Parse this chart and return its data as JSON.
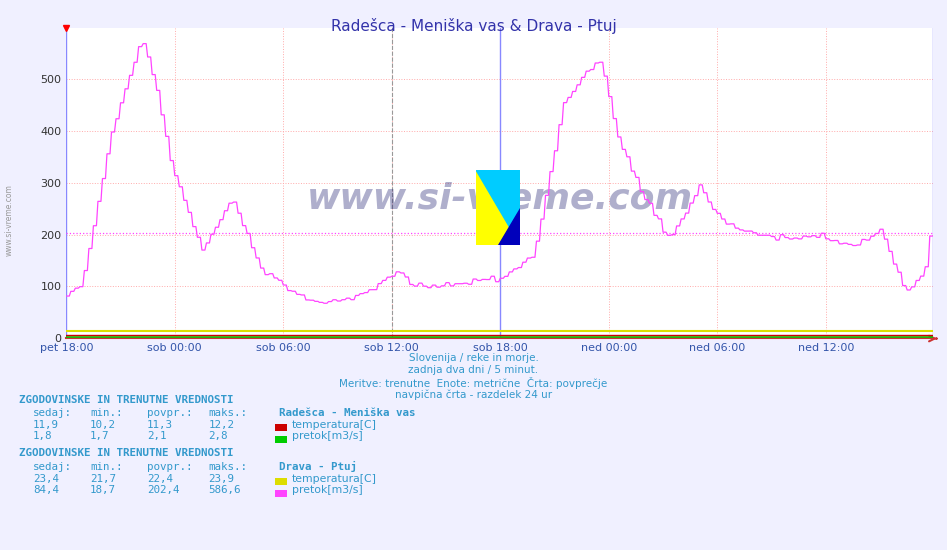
{
  "title": "Radešca - Meniška vas & Drava - Ptuj",
  "title_color": "#3333aa",
  "bg_color": "#f0f0ff",
  "plot_bg_color": "#ffffff",
  "grid_color_major": "#ffaaaa",
  "xlabel_ticks": [
    "pet 18:00",
    "sob 00:00",
    "sob 06:00",
    "sob 12:00",
    "sob 18:00",
    "ned 00:00",
    "ned 06:00",
    "ned 12:00"
  ],
  "n_points": 576,
  "ylim": [
    0,
    600
  ],
  "yticks": [
    0,
    100,
    200,
    300,
    400,
    500
  ],
  "avg_line_value": 202.4,
  "avg_line_color": "#ff44ff",
  "watermark": "www.si-vreme.com",
  "subtitle_lines": [
    "Slovenija / reke in morje.",
    "zadnja dva dni / 5 minut.",
    "Meritve: trenutne  Enote: metrične  Črta: povprečje",
    "navpična črta - razdelek 24 ur"
  ],
  "subtitle_color": "#3399cc",
  "legend_section1_title": "ZGODOVINSKE IN TRENUTNE VREDNOSTI",
  "legend_section1_station": "Radešca - Meniška vas",
  "legend_s1_headers": [
    "sedaj:",
    "min.:",
    "povpr.:",
    "maks.:"
  ],
  "legend_s1_row1": [
    "11,9",
    "10,2",
    "11,3",
    "12,2"
  ],
  "legend_s1_row2": [
    "1,8",
    "1,7",
    "2,1",
    "2,8"
  ],
  "legend_s1_colors": [
    "#cc0000",
    "#00cc00"
  ],
  "legend_s1_labels": [
    "temperatura[C]",
    "pretok[m3/s]"
  ],
  "legend_section2_title": "ZGODOVINSKE IN TRENUTNE VREDNOSTI",
  "legend_section2_station": "Drava - Ptuj",
  "legend_s2_headers": [
    "sedaj:",
    "min.:",
    "povpr.:",
    "maks.:"
  ],
  "legend_s2_row1": [
    "23,4",
    "21,7",
    "22,4",
    "23,9"
  ],
  "legend_s2_row2": [
    "84,4",
    "18,7",
    "202,4",
    "586,6"
  ],
  "legend_s2_colors": [
    "#dddd00",
    "#ff44ff"
  ],
  "legend_s2_labels": [
    "temperatura[C]",
    "pretok[m3/s]"
  ],
  "drava_pretok_color": "#ff44ff",
  "radesica_pretok_color": "#00cc00",
  "radesica_temp_color": "#cc0000",
  "drava_temp_color": "#dddd00"
}
